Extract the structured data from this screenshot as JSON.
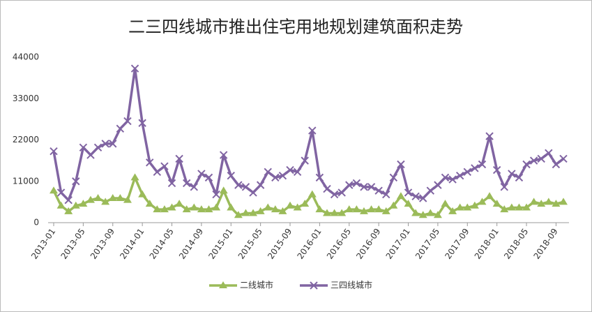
{
  "chart_data": {
    "type": "line",
    "title": "二三四线城市推出住宅用地规划建筑面积走势",
    "categories": [
      "2013-01",
      null,
      null,
      null,
      "2013-05",
      null,
      null,
      null,
      "2013-09",
      null,
      null,
      null,
      "2014-01",
      null,
      null,
      null,
      "2014-05",
      null,
      null,
      null,
      "2014-09",
      null,
      null,
      null,
      "2015-01",
      null,
      null,
      null,
      "2015-05",
      null,
      null,
      null,
      "2015-09",
      null,
      null,
      null,
      "2016-01",
      null,
      null,
      null,
      "2016-05",
      null,
      null,
      null,
      "2016-09",
      null,
      null,
      null,
      "2017-01",
      null,
      null,
      null,
      "2017-05",
      null,
      null,
      null,
      "2017-09",
      null,
      null,
      null,
      "2018-01",
      null,
      null,
      null,
      "2018-05",
      null,
      null,
      null,
      "2018-09",
      null
    ],
    "series": [
      {
        "name": "二线城市",
        "color": "#9bbb59",
        "marker": "triangle",
        "values": [
          8500,
          4500,
          3000,
          4500,
          5000,
          6000,
          6500,
          5500,
          6500,
          6500,
          6000,
          12000,
          7500,
          5000,
          3500,
          3500,
          4000,
          5000,
          3500,
          4000,
          3500,
          3500,
          4000,
          8500,
          4000,
          2000,
          2500,
          2500,
          3000,
          4000,
          3500,
          3000,
          4500,
          4000,
          5000,
          7500,
          3500,
          2500,
          2500,
          2500,
          3500,
          3500,
          3000,
          3500,
          3500,
          3000,
          4500,
          7000,
          5000,
          2500,
          2000,
          2500,
          2000,
          5000,
          3000,
          4000,
          4000,
          4500,
          5500,
          7000,
          5000,
          3500,
          4000,
          4000,
          4000,
          5500,
          5000,
          5500,
          5000,
          5500
        ]
      },
      {
        "name": "三四线城市",
        "color": "#8064a2",
        "marker": "x",
        "values": [
          19000,
          8000,
          6000,
          11000,
          20000,
          18000,
          20000,
          21000,
          21000,
          25000,
          27000,
          41000,
          26500,
          16000,
          13500,
          15000,
          10500,
          17000,
          10500,
          9500,
          13000,
          12000,
          7500,
          18000,
          12500,
          10000,
          9500,
          8000,
          10000,
          13500,
          12000,
          12500,
          14000,
          13500,
          16500,
          24500,
          12000,
          9000,
          7500,
          8000,
          10000,
          10500,
          9500,
          9500,
          8500,
          7500,
          12000,
          15500,
          8000,
          7000,
          6500,
          8500,
          10000,
          12000,
          11500,
          12500,
          13500,
          14500,
          15500,
          23000,
          14000,
          9500,
          13000,
          12000,
          15500,
          16500,
          17000,
          18500,
          15500,
          17000
        ]
      }
    ],
    "ylim": [
      0,
      44000
    ],
    "yticks": [
      0,
      11000,
      22000,
      33000,
      44000
    ],
    "grid": false,
    "legend": "bottom"
  }
}
